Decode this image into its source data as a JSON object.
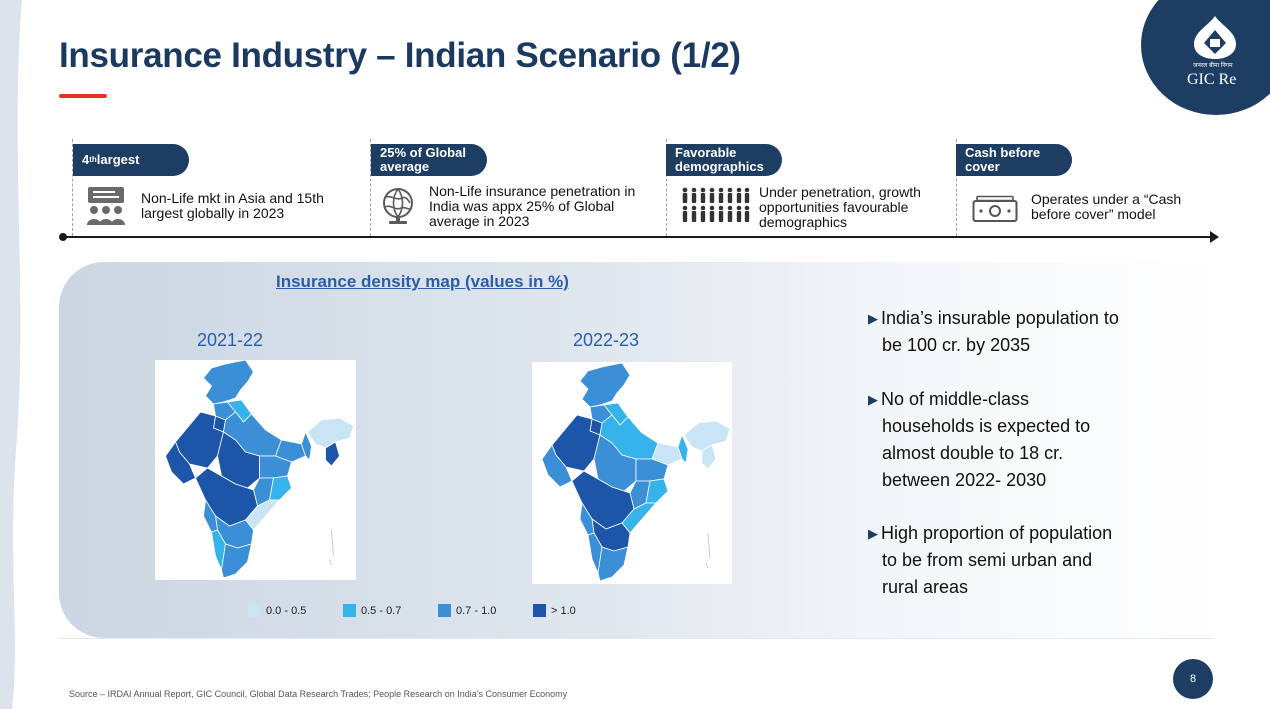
{
  "slide": {
    "title": "Insurance Industry – Indian Scenario (1/2)",
    "page_number": "8",
    "source": "Source – IRDAI Annual Report, GIC Council, Global Data Research Trades; People Research on India’s Consumer Economy"
  },
  "logo": {
    "name": "GIC Re",
    "subtitle": "जनरल बीमा निगम"
  },
  "timeline": [
    {
      "label_main": "4",
      "label_sup": "th",
      "label_rest": " largest",
      "description": "Non-Life mkt in Asia and 15th largest globally in 2023",
      "icon": "presentation-audience-icon"
    },
    {
      "label": "25% of Global average",
      "description": "Non-Life insurance penetration in India was appx 25% of Global average in 2023",
      "icon": "globe-icon"
    },
    {
      "label": "Favorable demographics",
      "description": "Under penetration, growth opportunities favourable demographics",
      "icon": "population-icon"
    },
    {
      "label": "Cash before cover",
      "description": "Operates under a “Cash before cover” model",
      "icon": "cash-icon"
    }
  ],
  "map_section": {
    "title": "Insurance density map (values in %)",
    "years": [
      "2021-22",
      "2022-23"
    ],
    "legend": [
      {
        "label": "0.0 - 0.5",
        "color": "#c8e4f5"
      },
      {
        "label": "0.5 - 0.7",
        "color": "#35b3ea"
      },
      {
        "label": "0.7 - 1.0",
        "color": "#3a8fd6"
      },
      {
        "label": "> 1.0",
        "color": "#1d55a8"
      }
    ]
  },
  "bullets": [
    {
      "first": "India’s insurable population to",
      "rest": "be 100 cr. by 2035"
    },
    {
      "first": "No of middle-class",
      "rest": "households is expected to almost double to 18 cr. between 2022- 2030"
    },
    {
      "first": "High proportion of population",
      "rest": "to be from semi urban and rural areas"
    }
  ]
}
